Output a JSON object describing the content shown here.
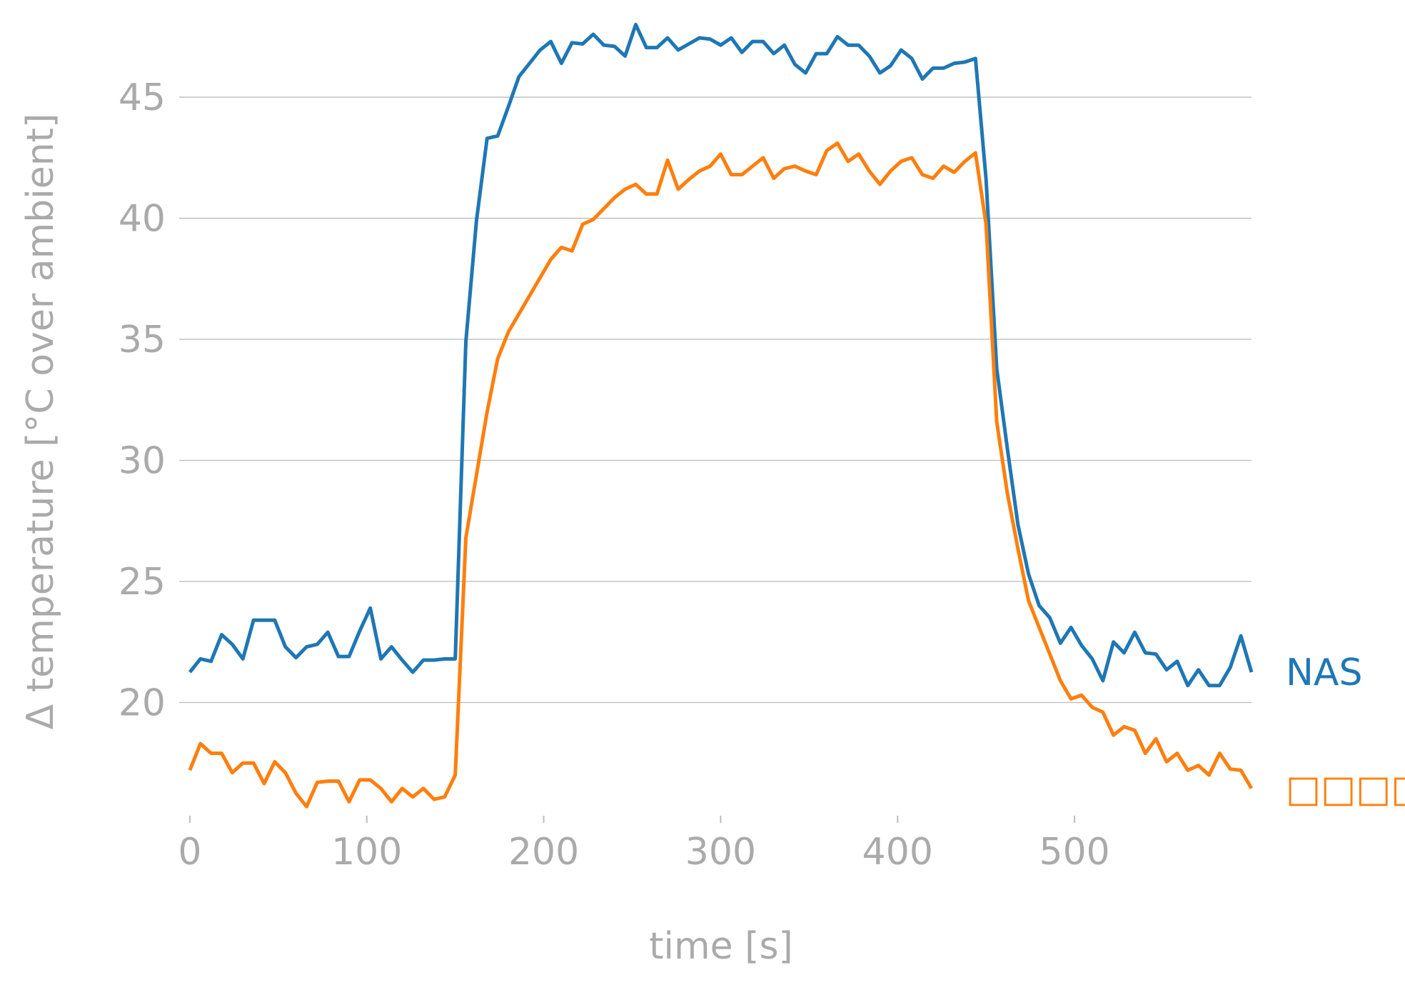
{
  "chart_data": {
    "type": "line",
    "xlabel": "time [s]",
    "ylabel": "Δ temperature [°C over ambient]",
    "xlim": [
      -6,
      600
    ],
    "ylim": [
      15.5,
      48.1
    ],
    "xticks": [
      0,
      100,
      200,
      300,
      400,
      500
    ],
    "yticks": [
      20,
      25,
      30,
      35,
      40,
      45
    ],
    "grid": true,
    "legend": "line-end",
    "x": [
      0,
      6,
      12,
      18,
      24,
      30,
      36,
      42,
      48,
      54,
      60,
      66,
      72,
      78,
      84,
      90,
      96,
      102,
      108,
      114,
      120,
      126,
      132,
      138,
      144,
      150,
      156,
      162,
      168,
      174,
      180,
      186,
      192,
      198,
      204,
      210,
      216,
      222,
      228,
      234,
      240,
      246,
      252,
      258,
      264,
      270,
      276,
      282,
      288,
      294,
      300,
      306,
      312,
      318,
      324,
      330,
      336,
      342,
      348,
      354,
      360,
      366,
      372,
      378,
      384,
      390,
      396,
      402,
      408,
      414,
      420,
      426,
      432,
      438,
      444,
      450,
      456,
      462,
      468,
      474,
      480,
      486,
      492,
      498,
      504,
      510,
      516,
      522,
      528,
      534,
      540,
      546,
      552,
      558,
      564,
      570,
      576,
      582,
      588,
      594,
      600
    ],
    "series": [
      {
        "name": "NAS",
        "color": "#1f77b4",
        "values": [
          21.25,
          21.8,
          21.7,
          22.8,
          22.4,
          21.8,
          23.4,
          23.4,
          23.4,
          22.3,
          21.85,
          22.3,
          22.4,
          22.9,
          21.9,
          21.9,
          22.95,
          23.9,
          21.8,
          22.3,
          21.75,
          21.25,
          21.75,
          21.75,
          21.8,
          21.8,
          34.9,
          39.9,
          43.3,
          43.4,
          44.6,
          45.85,
          46.4,
          46.95,
          47.3,
          46.4,
          47.25,
          47.2,
          47.6,
          47.15,
          47.1,
          46.7,
          48.0,
          47.05,
          47.05,
          47.45,
          46.95,
          47.2,
          47.45,
          47.4,
          47.15,
          47.45,
          46.85,
          47.3,
          47.3,
          46.8,
          47.15,
          46.35,
          46.0,
          46.8,
          46.8,
          47.5,
          47.15,
          47.15,
          46.7,
          46.0,
          46.3,
          46.95,
          46.6,
          45.75,
          46.2,
          46.2,
          46.4,
          46.45,
          46.6,
          41.6,
          33.8,
          30.5,
          27.35,
          25.3,
          24.0,
          23.5,
          22.45,
          23.1,
          22.35,
          21.8,
          20.9,
          22.5,
          22.05,
          22.9,
          22.05,
          22.0,
          21.35,
          21.7,
          20.7,
          21.35,
          20.7,
          20.7,
          21.45,
          22.75,
          21.25
        ]
      },
      {
        "name": "□□□□",
        "color": "#ff7f0e",
        "values": [
          17.2,
          18.3,
          17.9,
          17.9,
          17.1,
          17.5,
          17.5,
          16.65,
          17.55,
          17.1,
          16.25,
          15.7,
          16.7,
          16.75,
          16.75,
          15.9,
          16.8,
          16.8,
          16.45,
          15.9,
          16.45,
          16.1,
          16.45,
          16.0,
          16.1,
          17.0,
          26.8,
          29.4,
          32.0,
          34.2,
          35.3,
          36.05,
          36.8,
          37.55,
          38.3,
          38.8,
          38.65,
          39.75,
          39.95,
          40.4,
          40.85,
          41.2,
          41.4,
          41.0,
          41.0,
          42.4,
          41.2,
          41.6,
          41.95,
          42.15,
          42.65,
          41.8,
          41.8,
          42.15,
          42.5,
          41.65,
          42.05,
          42.15,
          41.95,
          41.8,
          42.8,
          43.1,
          42.35,
          42.65,
          41.95,
          41.4,
          41.95,
          42.35,
          42.5,
          41.8,
          41.65,
          42.15,
          41.9,
          42.35,
          42.7,
          39.75,
          31.6,
          28.65,
          26.35,
          24.2,
          23.1,
          22.0,
          20.9,
          20.15,
          20.3,
          19.8,
          19.6,
          18.65,
          19.0,
          18.85,
          17.9,
          18.5,
          17.55,
          17.9,
          17.2,
          17.4,
          17.0,
          17.9,
          17.25,
          17.2,
          16.45
        ]
      }
    ]
  }
}
